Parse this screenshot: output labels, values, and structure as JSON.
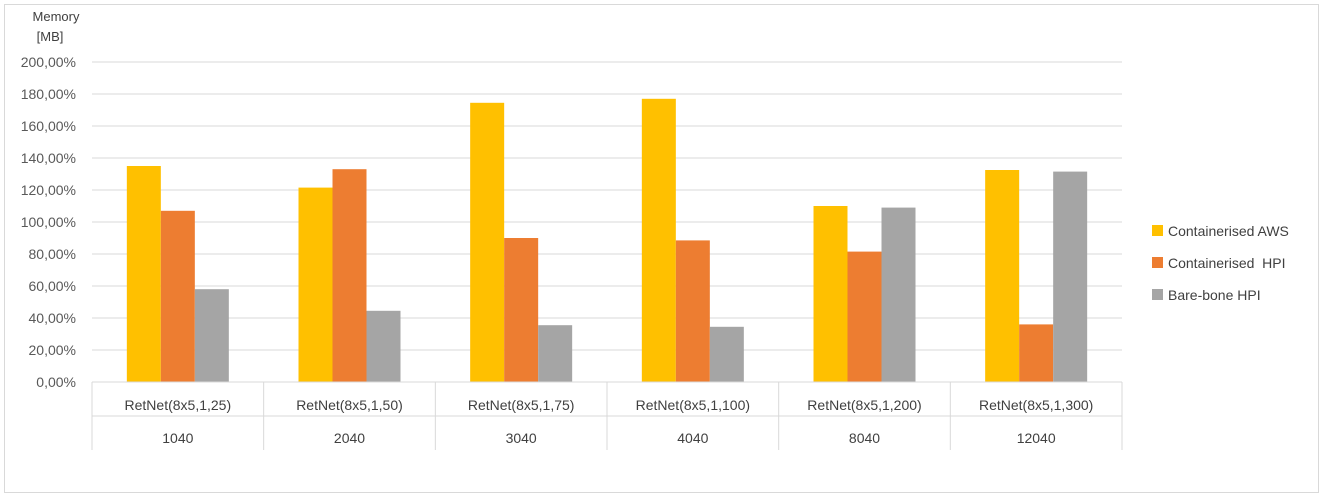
{
  "chart_data": {
    "type": "bar",
    "title": "",
    "ylabel_line1": "Memory",
    "ylabel_line2": "[MB]",
    "ylim": [
      0,
      200
    ],
    "ytick_step": 20,
    "ytick_labels": [
      "0,00%",
      "20,00%",
      "40,00%",
      "60,00%",
      "80,00%",
      "100,00%",
      "120,00%",
      "140,00%",
      "160,00%",
      "180,00%",
      "200,00%"
    ],
    "grid": true,
    "legend_position": "right",
    "categories": [
      {
        "model": "RetNet(8x5,1,25)",
        "size": "1040"
      },
      {
        "model": "RetNet(8x5,1,50)",
        "size": "2040"
      },
      {
        "model": "RetNet(8x5,1,75)",
        "size": "3040"
      },
      {
        "model": "RetNet(8x5,1,100)",
        "size": "4040"
      },
      {
        "model": "RetNet(8x5,1,200)",
        "size": "8040"
      },
      {
        "model": "RetNet(8x5,1,300)",
        "size": "12040"
      }
    ],
    "series": [
      {
        "name": "Containerised AWS",
        "color": "#ffc000",
        "values": [
          135,
          121.5,
          174.5,
          177,
          110,
          132.5
        ]
      },
      {
        "name": "Containerised  HPI",
        "color": "#ed7d31",
        "values": [
          107,
          133,
          90,
          88.5,
          81.5,
          36
        ]
      },
      {
        "name": "Bare-bone HPI",
        "color": "#a5a5a5",
        "values": [
          58,
          44.5,
          35.5,
          34.5,
          109,
          131.5
        ]
      }
    ]
  }
}
